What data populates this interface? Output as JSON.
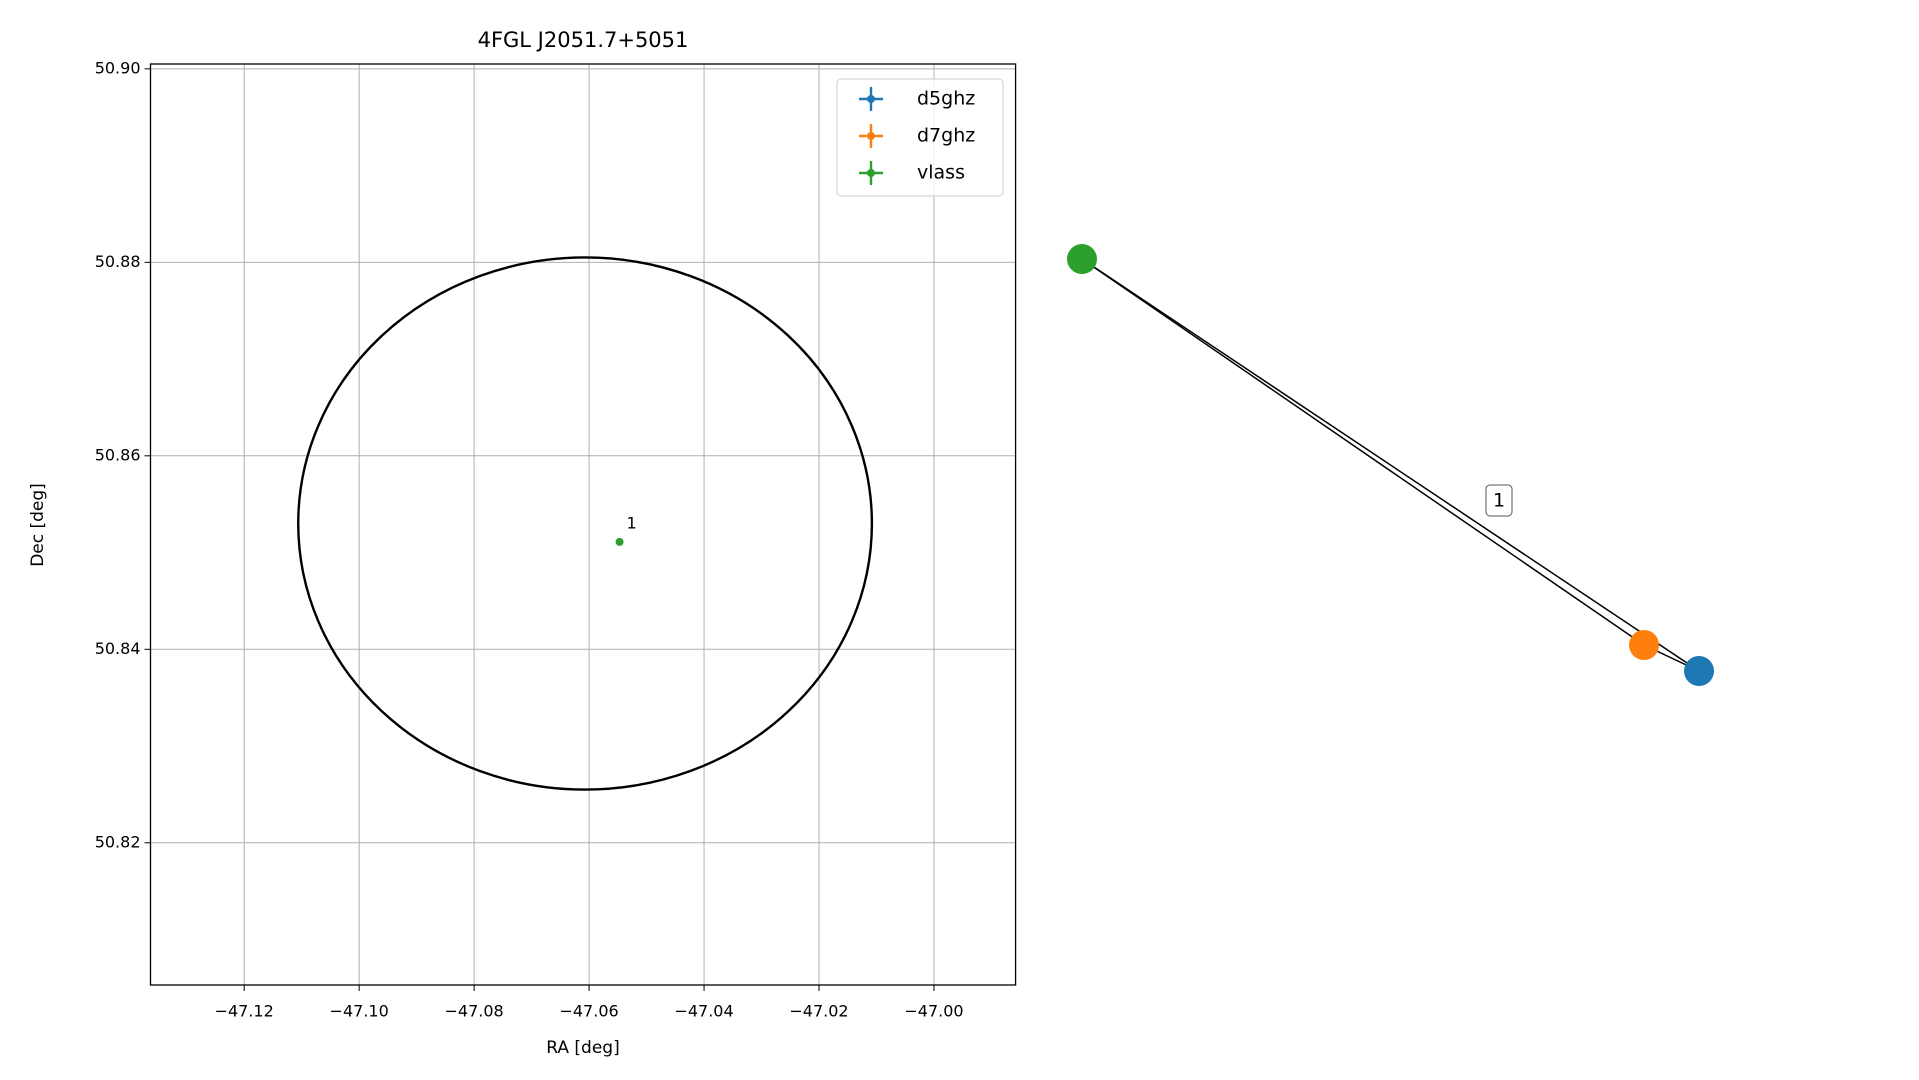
{
  "chart_data": [
    {
      "type": "scatter",
      "title": "4FGL J2051.7+5051",
      "xlabel": "RA [deg]",
      "ylabel": "Dec [deg]",
      "xlim": [
        -47.1363,
        -46.9858
      ],
      "ylim": [
        50.8053,
        50.9005
      ],
      "xticks": [
        {
          "value": -47.12,
          "label": "−47.12"
        },
        {
          "value": -47.1,
          "label": "−47.10"
        },
        {
          "value": -47.08,
          "label": "−47.08"
        },
        {
          "value": -47.06,
          "label": "−47.06"
        },
        {
          "value": -47.04,
          "label": "−47.04"
        },
        {
          "value": -47.02,
          "label": "−47.02"
        },
        {
          "value": -47.0,
          "label": "−47.00"
        }
      ],
      "yticks": [
        50.82,
        50.84,
        50.86,
        50.88,
        {
          "value": 50.9,
          "label": "50.90"
        }
      ],
      "grid": true,
      "legend": "upper right",
      "ellipse": {
        "center": [
          -47.0607,
          50.853
        ],
        "half_width": 0.0499,
        "half_height": 0.0275,
        "color": "#000000"
      },
      "series": [
        {
          "name": "d5ghz",
          "color": "#1f77b4",
          "x": [],
          "y": []
        },
        {
          "name": "d7ghz",
          "color": "#ff7f0e",
          "x": [],
          "y": []
        },
        {
          "name": "vlass",
          "color": "#2ca02c",
          "x": [
            -47.0547
          ],
          "y": [
            50.8511
          ]
        }
      ],
      "annotations": [
        "1"
      ]
    },
    {
      "type": "network",
      "node_colors": [
        "#2ca02c",
        "#ff7f0e",
        "#1f77b4"
      ],
      "edge_label": "1"
    }
  ]
}
